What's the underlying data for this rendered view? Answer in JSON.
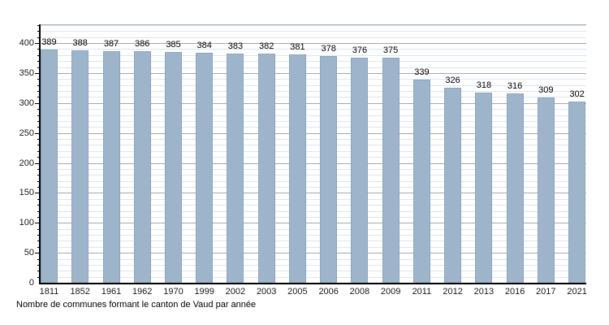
{
  "chart_data": {
    "type": "bar",
    "title": "",
    "caption": "Nombre de communes formant le canton de Vaud par année",
    "categories": [
      "1811",
      "1852",
      "1961",
      "1962",
      "1970",
      "1999",
      "2002",
      "2003",
      "2005",
      "2006",
      "2008",
      "2009",
      "2011",
      "2012",
      "2013",
      "2016",
      "2017",
      "2021"
    ],
    "values": [
      389,
      388,
      387,
      386,
      385,
      384,
      383,
      382,
      381,
      378,
      376,
      375,
      339,
      326,
      318,
      316,
      309,
      302
    ],
    "xlabel": "",
    "ylabel": "",
    "ylim": [
      0,
      430
    ],
    "yticks_major": [
      0,
      50,
      100,
      150,
      200,
      250,
      300,
      350,
      400
    ],
    "minor_grid_step": 10,
    "grid": true,
    "legend_position": "none",
    "colors": {
      "bar_fill": "#9eb4cb",
      "bar_border": "#8ba5bf",
      "major_grid": "#a8a8a8",
      "minor_grid": "#dde6ee",
      "axis": "#000000",
      "text": "#000000",
      "background": "#ffffff"
    }
  }
}
